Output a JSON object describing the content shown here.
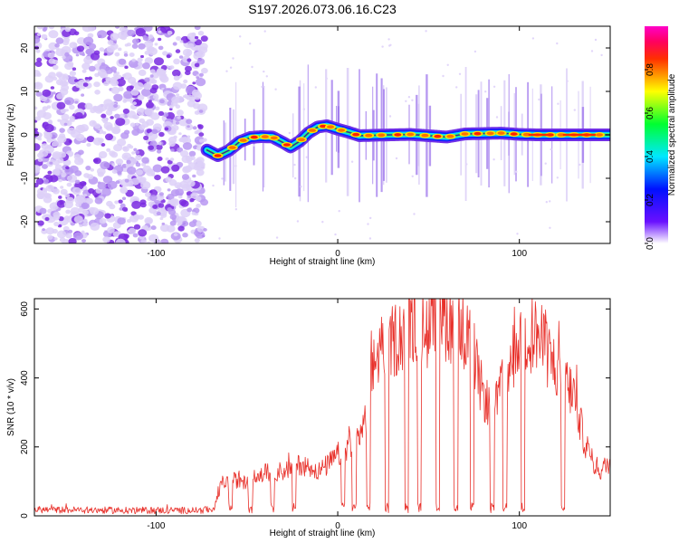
{
  "figure_title": "S197.2026.073.06.16.C23",
  "chart_data": [
    {
      "type": "heatmap",
      "name": "spectrogram",
      "title": "S197.2026.073.06.16.C23",
      "xlabel": "Height of straight line (km)",
      "ylabel": "Frequency (Hz)",
      "xlim": [
        -167,
        150
      ],
      "ylim": [
        -25,
        25
      ],
      "x_ticks": [
        -100,
        0,
        100
      ],
      "y_ticks": [
        -20,
        -10,
        0,
        10,
        20
      ],
      "noise_region_x": [
        -167,
        -73
      ],
      "signal_track": {
        "x": [
          -72,
          -66,
          -60,
          -54,
          -48,
          -42,
          -36,
          -30,
          -26,
          -21,
          -16,
          -11,
          -6,
          0,
          6,
          12,
          20,
          30,
          40,
          50,
          60,
          70,
          80,
          90,
          100,
          110,
          120,
          130,
          140,
          150
        ],
        "y": [
          -3.5,
          -4.8,
          -3.6,
          -1.6,
          -0.6,
          -0.4,
          -0.5,
          -1.8,
          -2.8,
          -1.5,
          0.5,
          1.8,
          2.1,
          1.3,
          0.6,
          -0.2,
          -0.1,
          0.0,
          0.1,
          -0.2,
          -0.5,
          0.2,
          0.3,
          0.4,
          0.1,
          0.0,
          0.0,
          0.0,
          0.0,
          0.0
        ]
      },
      "hot_spots_x": [
        -66,
        -58,
        -52,
        -46,
        -40,
        -35,
        -28,
        -20,
        -14,
        -8,
        -4,
        2,
        10,
        17,
        24,
        33,
        40,
        48,
        55,
        62,
        70,
        77,
        84,
        90,
        97,
        104,
        110,
        117,
        123,
        130,
        137,
        144
      ],
      "colorbar": {
        "label": "Normalized spectral amplitude",
        "range": [
          0,
          1
        ],
        "ticks": [
          0,
          0.2,
          0.4,
          0.6,
          0.8
        ],
        "tick_labels": [
          "0.0",
          "0.2",
          "0.4",
          "0.6",
          "0.8"
        ]
      }
    },
    {
      "type": "line",
      "name": "snr",
      "xlabel": "Height of straight line (km)",
      "ylabel": "SNR (10 * v/v)",
      "xlim": [
        -167,
        150
      ],
      "ylim": [
        0,
        630
      ],
      "x_ticks": [
        -100,
        0,
        100
      ],
      "y_ticks": [
        0,
        200,
        400,
        600
      ],
      "color": "#e8302a",
      "envelope": {
        "x": [
          -167,
          -120,
          -75,
          -68,
          -64,
          -58,
          -50,
          -40,
          -30,
          -20,
          -10,
          -5,
          0,
          5,
          10,
          15,
          18,
          20,
          25,
          30,
          35,
          40,
          45,
          50,
          55,
          60,
          65,
          70,
          75,
          78,
          82,
          85,
          90,
          95,
          100,
          105,
          110,
          115,
          120,
          125,
          130,
          135,
          140,
          145,
          150
        ],
        "y": [
          18,
          16,
          16,
          20,
          95,
          105,
          95,
          125,
          130,
          150,
          130,
          150,
          175,
          200,
          215,
          275,
          360,
          440,
          510,
          505,
          530,
          560,
          555,
          540,
          580,
          570,
          555,
          540,
          470,
          385,
          330,
          320,
          365,
          450,
          510,
          530,
          525,
          475,
          430,
          395,
          350,
          235,
          155,
          130,
          160
        ]
      },
      "dropouts_x": [
        -59,
        -48,
        -36,
        -24,
        3,
        9,
        17,
        27,
        38,
        45,
        55,
        65,
        74,
        85,
        92,
        102,
        124
      ]
    }
  ]
}
